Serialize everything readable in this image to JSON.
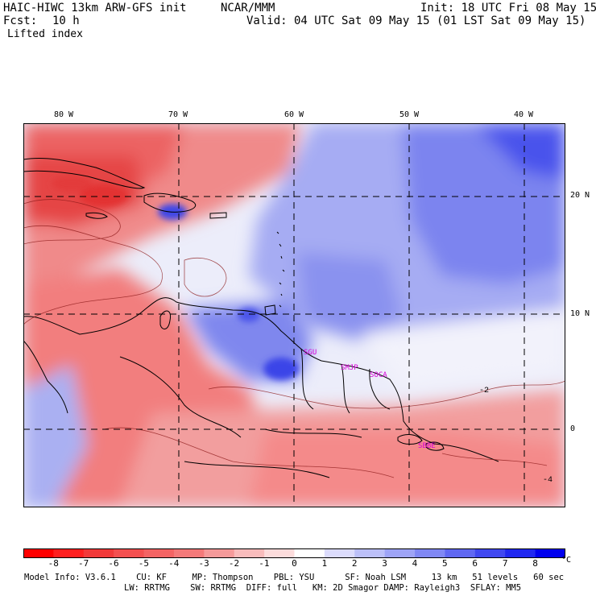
{
  "header": {
    "model_title": "HAIC-HIWC 13km ARW-GFS init",
    "center": "NCAR/MMM",
    "init": "Init: 18 UTC Fri 08 May 15",
    "fcst_label": "Fcst:",
    "fcst_value": "10 h",
    "valid": "Valid: 04 UTC Sat 09 May 15 (01 LST Sat 09 May 15)",
    "field": "Lifted index"
  },
  "map": {
    "longitude_labels": [
      "80 W",
      "70 W",
      "60 W",
      "50 W",
      "40 W"
    ],
    "latitude_labels": [
      "20 N",
      "10 N",
      "0"
    ],
    "stations": [
      "SGU",
      "SMJP",
      "SOCA",
      "SBBE"
    ],
    "contour_labels": [
      "-2",
      "-4"
    ]
  },
  "colorbar": {
    "labels": [
      "-8",
      "-7",
      "-6",
      "-5",
      "-4",
      "-3",
      "-2",
      "-1",
      "0",
      "1",
      "2",
      "3",
      "4",
      "5",
      "6",
      "7",
      "8"
    ],
    "unit": "°C",
    "colors": [
      "#ff0000",
      "#ff2020",
      "#f23a3a",
      "#f45050",
      "#f46464",
      "#f47a7a",
      "#f59a9a",
      "#f8bcbc",
      "#fcdcdc",
      "#ffffff",
      "#dcdcfc",
      "#bcc0f8",
      "#9ea4f6",
      "#8088f4",
      "#6068f2",
      "#4048f0",
      "#2028f0",
      "#0000ee"
    ]
  },
  "footer": {
    "line1": "Model Info: V3.6.1    CU: KF     MP: Thompson    PBL: YSU      SF: Noah LSM     13 km   51 levels   60 sec",
    "line2": "LW: RRTMG    SW: RRTMG  DIFF: full   KM: 2D Smagor DAMP: Rayleigh3  SFLAY: MM5"
  }
}
